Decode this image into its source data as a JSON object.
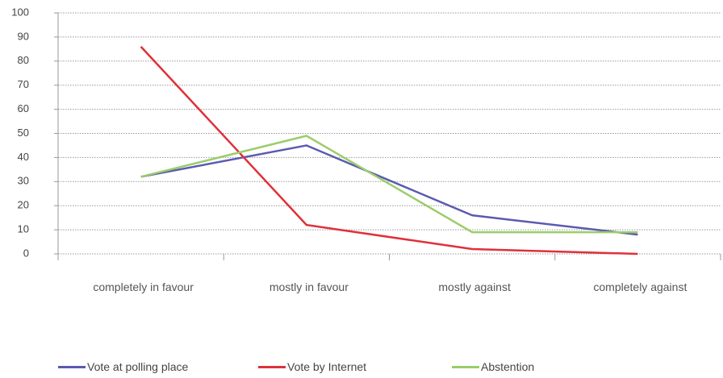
{
  "chart_data": {
    "type": "line",
    "categories": [
      "completely in favour",
      "mostly in favour",
      "mostly against",
      "completely against"
    ],
    "series": [
      {
        "name": "Vote at polling place",
        "color": "#5a5ab0",
        "values": [
          32,
          45,
          16,
          8
        ]
      },
      {
        "name": "Vote by Internet",
        "color": "#e0303a",
        "values": [
          86,
          12,
          2,
          0
        ]
      },
      {
        "name": "Abstention",
        "color": "#9acd6a",
        "values": [
          32,
          49,
          9,
          9
        ]
      }
    ],
    "ylim": [
      0,
      100
    ],
    "yticks": [
      0,
      10,
      20,
      30,
      40,
      50,
      60,
      70,
      80,
      90,
      100
    ],
    "grid": true,
    "legend": "bottom"
  }
}
